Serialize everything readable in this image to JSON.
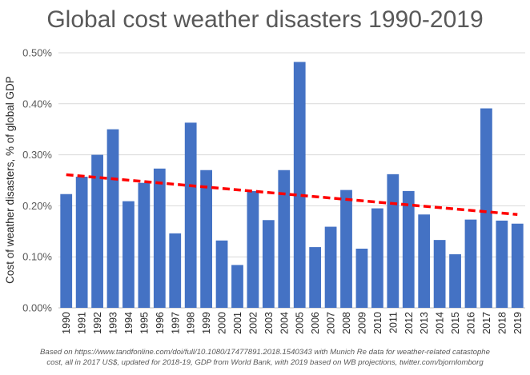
{
  "chart_data": {
    "type": "bar",
    "title": "Global cost weather disasters 1990-2019",
    "ylabel": "Cost of weather disasters, % of global GDP",
    "xlabel": "",
    "ylim": [
      0,
      0.5
    ],
    "yticks": [
      0,
      0.1,
      0.2,
      0.3,
      0.4,
      0.5
    ],
    "ytick_labels": [
      "0.00%",
      "0.10%",
      "0.20%",
      "0.30%",
      "0.40%",
      "0.50%"
    ],
    "categories": [
      "1990",
      "1991",
      "1992",
      "1993",
      "1994",
      "1995",
      "1996",
      "1997",
      "1998",
      "1999",
      "2000",
      "2001",
      "2002",
      "2003",
      "2004",
      "2005",
      "2006",
      "2007",
      "2008",
      "2009",
      "2010",
      "2011",
      "2012",
      "2013",
      "2014",
      "2015",
      "2016",
      "2017",
      "2018",
      "2019"
    ],
    "series": [
      {
        "name": "Cost of weather disasters",
        "color": "#4472C4",
        "values": [
          0.223,
          0.257,
          0.3,
          0.35,
          0.209,
          0.245,
          0.273,
          0.146,
          0.363,
          0.27,
          0.132,
          0.084,
          0.229,
          0.172,
          0.27,
          0.482,
          0.119,
          0.159,
          0.231,
          0.116,
          0.195,
          0.262,
          0.229,
          0.183,
          0.133,
          0.105,
          0.173,
          0.391,
          0.171,
          0.165
        ]
      }
    ],
    "trendline": {
      "name": "Linear trend",
      "color": "#FF0000",
      "style": "dashed",
      "start_value": 0.261,
      "end_value": 0.183
    },
    "footnote": [
      "Based on https://www.tandfonline.com/doi/full/10.1080/17477891.2018.1540343 with Munich Re data for weather-related catastophe",
      "cost, all in 2017 US$, updated for 2018-19, GDP from World Bank, with 2019 based on WB projections, twitter.com/bjornlomborg"
    ]
  }
}
